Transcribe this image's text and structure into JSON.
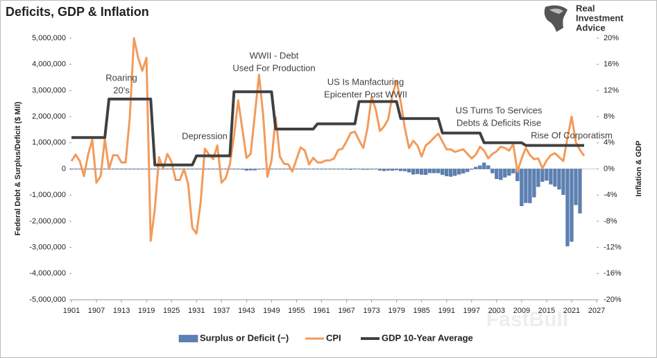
{
  "chart_data": {
    "type": "combo",
    "title": "Deficits, GDP & Inflation",
    "logo": [
      "Real",
      "Investment",
      "Advice"
    ],
    "watermark": "FastBull",
    "y_label": "Federal Debt & Surplus/Deficit ($ Mil)",
    "y2_label": "Inflation & GDP",
    "legend": "bottom",
    "annotations": [
      {
        "lines": [
          "Roaring",
          "20's"
        ]
      },
      {
        "lines": [
          "Depression"
        ]
      },
      {
        "lines": [
          "WWII - Debt",
          "Used For Production"
        ]
      },
      {
        "lines": [
          "US Is Manfacturing",
          "Epicenter Post WWII"
        ]
      },
      {
        "lines": [
          "US Turns To Services",
          "Debts & Deficits Rise"
        ]
      },
      {
        "lines": [
          "Rise Of Corporatism"
        ]
      }
    ],
    "xlim": [
      1901,
      2027
    ],
    "xticks": [
      1901,
      1907,
      1913,
      1919,
      1925,
      1931,
      1937,
      1943,
      1949,
      1955,
      1961,
      1967,
      1973,
      1979,
      1985,
      1991,
      1997,
      2003,
      2009,
      2015,
      2021,
      2027
    ],
    "ylim": [
      -5000000,
      5000000
    ],
    "yticks": [
      {
        "value": -5000000,
        "label": "-5,000,000"
      },
      {
        "value": -4000000,
        "label": "-4,000,000"
      },
      {
        "value": -3000000,
        "label": "-3,000,000"
      },
      {
        "value": -2000000,
        "label": "-2,000,000"
      },
      {
        "value": -1000000,
        "label": "-1,000,000"
      },
      0,
      {
        "value": 1000000,
        "label": "1,000,000"
      },
      {
        "value": 2000000,
        "label": "2,000,000"
      },
      {
        "value": 3000000,
        "label": "3,000,000"
      },
      {
        "value": 4000000,
        "label": "4,000,000"
      },
      {
        "value": 5000000,
        "label": "5,000,000"
      }
    ],
    "y2lim": [
      -20,
      20
    ],
    "y2ticks": [
      {
        "value": -20,
        "label": "-20%"
      },
      {
        "value": -16,
        "label": "-16%"
      },
      {
        "value": -12,
        "label": "-12%"
      },
      {
        "value": -8,
        "label": "-8%"
      },
      {
        "value": -4,
        "label": "-4%"
      },
      {
        "value": 0,
        "label": "0%"
      },
      {
        "value": 4,
        "label": "4%"
      },
      {
        "value": 8,
        "label": "8%"
      },
      {
        "value": 12,
        "label": "12%"
      },
      {
        "value": 16,
        "label": "16%"
      },
      {
        "value": 20,
        "label": "20%"
      }
    ],
    "x": [
      1901,
      1902,
      1903,
      1904,
      1905,
      1906,
      1907,
      1908,
      1909,
      1910,
      1911,
      1912,
      1913,
      1914,
      1915,
      1916,
      1917,
      1918,
      1919,
      1920,
      1921,
      1922,
      1923,
      1924,
      1925,
      1926,
      1927,
      1928,
      1929,
      1930,
      1931,
      1932,
      1933,
      1934,
      1935,
      1936,
      1937,
      1938,
      1939,
      1940,
      1941,
      1942,
      1943,
      1944,
      1945,
      1946,
      1947,
      1948,
      1949,
      1950,
      1951,
      1952,
      1953,
      1954,
      1955,
      1956,
      1957,
      1958,
      1959,
      1960,
      1961,
      1962,
      1963,
      1964,
      1965,
      1966,
      1967,
      1968,
      1969,
      1970,
      1971,
      1972,
      1973,
      1974,
      1975,
      1976,
      1977,
      1978,
      1979,
      1980,
      1981,
      1982,
      1983,
      1984,
      1985,
      1986,
      1987,
      1988,
      1989,
      1990,
      1991,
      1992,
      1993,
      1994,
      1995,
      1996,
      1997,
      1998,
      1999,
      2000,
      2001,
      2002,
      2003,
      2004,
      2005,
      2006,
      2007,
      2008,
      2009,
      2010,
      2011,
      2012,
      2013,
      2014,
      2015,
      2016,
      2017,
      2018,
      2019,
      2020,
      2021,
      2022,
      2023,
      2024
    ],
    "series": [
      {
        "name": "Surplus or Deficit (−)",
        "color": "#5b80b4",
        "axis": "y",
        "values": [
          63,
          77,
          45,
          -43,
          -23,
          25,
          87,
          -57,
          -89,
          -18,
          11,
          3,
          0,
          0,
          -63,
          48,
          -853,
          -9032,
          -13363,
          291,
          509,
          736,
          713,
          963,
          717,
          865,
          1155,
          939,
          734,
          738,
          -462,
          -2735,
          -2602,
          -3630,
          -2791,
          -4425,
          -2777,
          -89,
          -2846,
          -2920,
          -4941,
          -20503,
          -54554,
          -47557,
          -47553,
          -15936,
          4018,
          11796,
          580,
          -3119,
          6102,
          -1519,
          -6493,
          -1154,
          -2993,
          3947,
          3412,
          -2769,
          -12849,
          301,
          -3335,
          -7146,
          -4756,
          -5915,
          -1411,
          -3698,
          -8643,
          -25161,
          3242,
          -2842,
          -23033,
          -23373,
          -14908,
          -6135,
          -53242,
          -73732,
          -53659,
          -59185,
          -40726,
          -73830,
          -78968,
          -127977,
          -207802,
          -185367,
          -212308,
          -221227,
          -149730,
          -155178,
          -152639,
          -221036,
          -269238,
          -290321,
          -255051,
          -203186,
          -163952,
          -107431,
          -21884,
          69270,
          125610,
          236241,
          128236,
          -157758,
          -377585,
          -412727,
          -318346,
          -248181,
          -160701,
          -458553,
          -1412688,
          -1294373,
          -1299593,
          -1076573,
          -679775,
          -484793,
          -438496,
          -584651,
          -665446,
          -779137,
          -983592,
          -2950000,
          -2775306,
          -1375905,
          -1693724,
          null
        ]
      },
      {
        "name": "CPI",
        "color": "#f39a5a",
        "axis": "y2",
        "values": [
          1.2,
          2.2,
          1.2,
          -1.1,
          2.2,
          4.5,
          -2.1,
          -1.1,
          4.6,
          0,
          2.1,
          2.1,
          1.0,
          1.0,
          7.9,
          20,
          17,
          15,
          17,
          -11,
          -6.1,
          1.8,
          0,
          2.3,
          1.1,
          -1.7,
          -1.7,
          0,
          -2.3,
          -9.0,
          -9.9,
          -5.1,
          3.1,
          2.2,
          1.5,
          3.6,
          -2.1,
          -1.4,
          0.7,
          5.0,
          10.5,
          6.1,
          1.7,
          2.3,
          8.3,
          14.4,
          8.1,
          -1.2,
          1.3,
          7.9,
          1.9,
          0.8,
          0.7,
          -0.4,
          1.5,
          3.3,
          2.8,
          0.7,
          1.7,
          1.0,
          1.0,
          1.3,
          1.3,
          1.6,
          2.9,
          3.1,
          4.2,
          5.5,
          5.7,
          4.4,
          3.2,
          6.2,
          11.0,
          9.1,
          5.8,
          6.5,
          7.6,
          11.3,
          13.5,
          10.3,
          6.2,
          3.2,
          4.3,
          3.6,
          1.9,
          3.6,
          4.1,
          4.8,
          5.4,
          4.2,
          3.0,
          3.0,
          2.6,
          2.8,
          3.0,
          2.3,
          1.6,
          2.2,
          3.4,
          2.8,
          1.6,
          2.3,
          2.7,
          3.4,
          3.2,
          2.8,
          3.8,
          -0.4,
          1.6,
          3.2,
          2.1,
          1.5,
          1.6,
          0.1,
          1.3,
          2.1,
          2.4,
          1.8,
          1.2,
          4.7,
          8.0,
          4.1,
          2.9,
          2.0
        ]
      },
      {
        "name": "GDP 10-Year Average",
        "color": "#404040",
        "axis": "y2",
        "values": [
          4.8,
          4.8,
          4.8,
          4.8,
          4.8,
          4.8,
          4.8,
          4.8,
          4.8,
          10.7,
          10.7,
          10.7,
          10.7,
          10.7,
          10.7,
          10.7,
          10.7,
          10.7,
          10.7,
          10.7,
          0.6,
          0.6,
          0.6,
          0.6,
          0.6,
          0.6,
          0.6,
          0.6,
          0.6,
          0.6,
          2.0,
          2.0,
          2.0,
          2.0,
          2.0,
          2.0,
          2.0,
          2.0,
          2.0,
          11.8,
          11.8,
          11.8,
          11.8,
          11.8,
          11.8,
          11.8,
          11.8,
          11.8,
          11.8,
          6.1,
          6.1,
          6.1,
          6.1,
          6.1,
          6.1,
          6.1,
          6.1,
          6.1,
          6.1,
          6.9,
          6.9,
          6.9,
          6.9,
          6.9,
          6.9,
          6.9,
          6.9,
          6.9,
          6.9,
          10.3,
          10.3,
          10.3,
          10.3,
          10.3,
          10.3,
          10.3,
          10.3,
          10.3,
          10.3,
          7.7,
          7.7,
          7.7,
          7.7,
          7.7,
          7.7,
          7.7,
          7.7,
          7.7,
          7.7,
          5.5,
          5.5,
          5.5,
          5.5,
          5.5,
          5.5,
          5.5,
          5.5,
          5.5,
          5.5,
          4.0,
          4.0,
          4.0,
          4.0,
          4.0,
          4.0,
          4.0,
          4.0,
          4.0,
          4.0,
          3.6,
          3.6,
          3.6,
          3.6,
          3.6,
          3.6,
          3.6,
          3.6,
          3.6,
          3.6,
          3.6,
          3.6,
          3.6,
          3.6,
          3.6
        ]
      }
    ]
  }
}
